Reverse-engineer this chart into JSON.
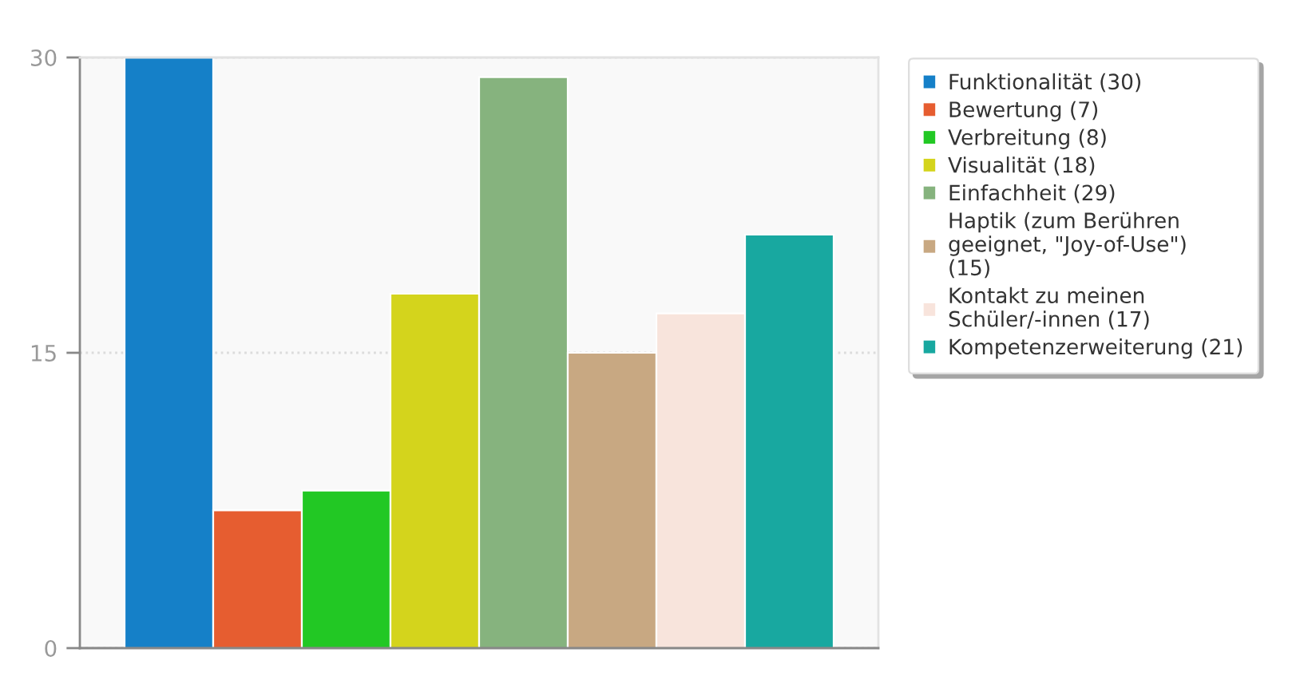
{
  "chart_data": {
    "type": "bar",
    "categories": [
      null
    ],
    "series": [
      {
        "name": "Funktionalität (30)",
        "color": "#1580c8",
        "values": [
          30
        ]
      },
      {
        "name": "Bewertung (7)",
        "color": "#e65d30",
        "values": [
          7
        ]
      },
      {
        "name": "Verbreitung (8)",
        "color": "#22c824",
        "values": [
          8
        ]
      },
      {
        "name": "Visualität (18)",
        "color": "#d4d41c",
        "values": [
          18
        ]
      },
      {
        "name": "Einfachheit (29)",
        "color": "#86b37e",
        "values": [
          29
        ]
      },
      {
        "name": "Haptik (zum Berühren\ngeeignet, \"Joy-of-Use\")\n(15)",
        "color": "#c8a882",
        "values": [
          15
        ]
      },
      {
        "name": "Kontakt zu meinen\nSchüler/-innen (17)",
        "color": "#f8e4dc",
        "values": [
          17
        ]
      },
      {
        "name": "Kompetenzerweiterung (21)",
        "color": "#18a8a0",
        "values": [
          21
        ]
      }
    ],
    "ylim": [
      0,
      30
    ],
    "yticks": [
      0,
      15,
      30
    ],
    "grid": "y",
    "legend": "right"
  }
}
